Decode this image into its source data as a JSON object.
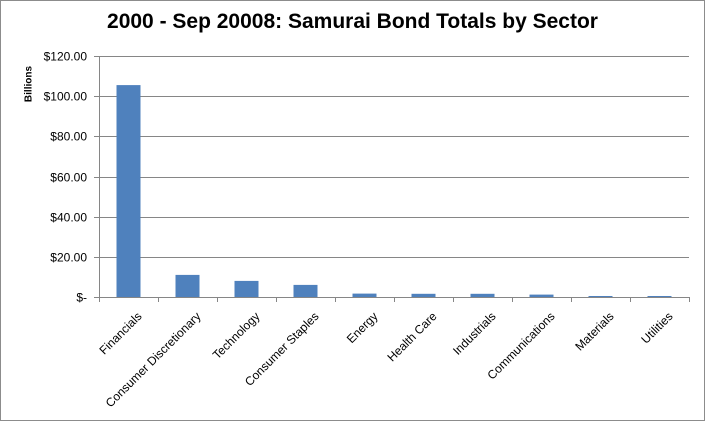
{
  "chart_data": {
    "type": "bar",
    "title": "2000 - Sep 20008: Samurai Bond Totals by Sector",
    "ylabel": "Billions",
    "xlabel": "",
    "categories": [
      "Financials",
      "Consumer Discretionary",
      "Technology",
      "Consumer Staples",
      "Energy",
      "Health Care",
      "Industrials",
      "Communications",
      "Materials",
      "Utilities"
    ],
    "values": [
      105.5,
      11.0,
      8.0,
      6.0,
      1.7,
      1.6,
      1.6,
      1.2,
      0.5,
      0.5
    ],
    "ylim": [
      0,
      120
    ],
    "yticks": [
      0,
      20,
      40,
      60,
      80,
      100,
      120
    ],
    "ytick_labels": [
      "$-",
      "$20.00",
      "$40.00",
      "$60.00",
      "$80.00",
      "$100.00",
      "$120.00"
    ],
    "grid": true,
    "legend": "none",
    "colors": {
      "bar": "#4f81bd",
      "grid": "#868686",
      "axis": "#868686"
    }
  }
}
